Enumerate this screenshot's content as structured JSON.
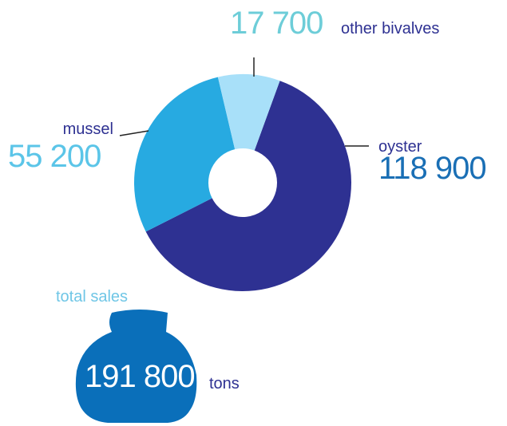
{
  "chart_data": {
    "type": "pie",
    "donut": true,
    "start_angle": 20,
    "categories": [
      "oyster",
      "mussel",
      "other bivalves"
    ],
    "values": [
      118900,
      55200,
      17700
    ],
    "value_labels": [
      "118 900",
      "55 200",
      "17 700"
    ],
    "colors": [
      "#2e3192",
      "#27aae1",
      "#a8e0f9"
    ],
    "total": {
      "label": "total sales",
      "value": 191800,
      "value_label": "191 800",
      "unit": "tons"
    }
  }
}
